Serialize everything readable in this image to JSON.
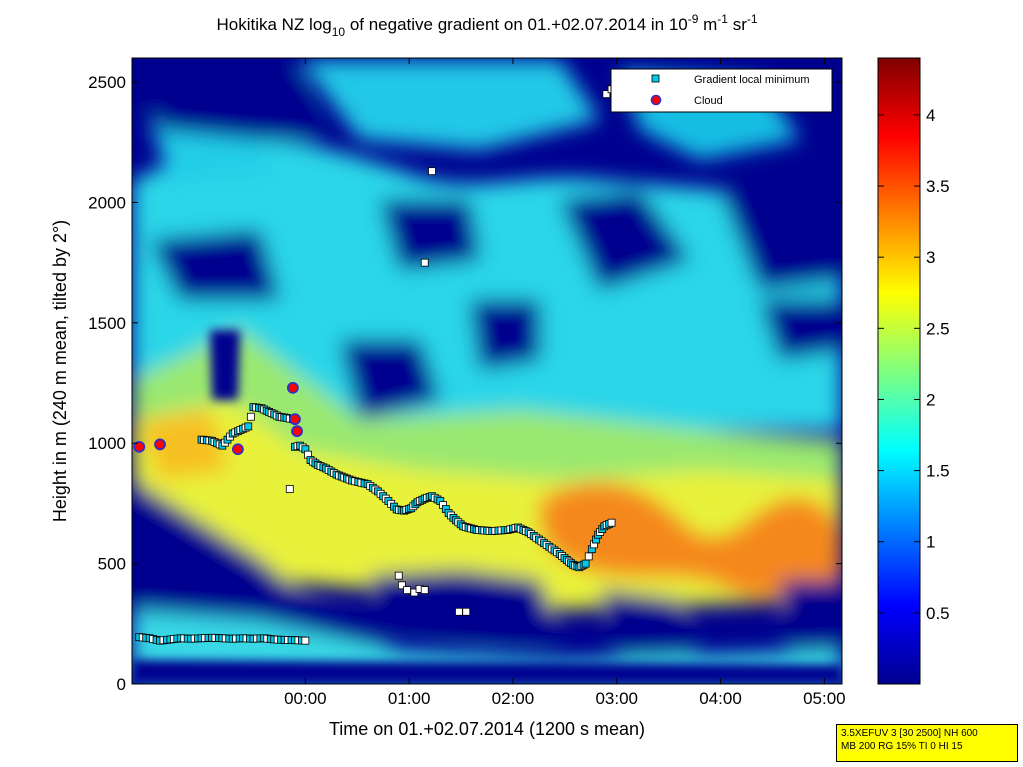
{
  "chart_data": {
    "type": "heatmap",
    "title_parts": {
      "pre": "Hokitika NZ log",
      "sub": "10",
      "mid": " of negative gradient on 01.+02.07.2014 in 10",
      "sup1": "-9",
      "unit1": " m",
      "sup2": "-1",
      "unit2": " sr",
      "sup3": "-1"
    },
    "xlabel": "Time on 01.+02.07.2014 (1200 s mean)",
    "ylabel": "Height in m (240 m mean, tilted by 2°)",
    "xticks": [
      "00:00",
      "01:00",
      "02:00",
      "03:00",
      "04:00",
      "05:00"
    ],
    "yticks": [
      "0",
      "500",
      "1000",
      "1500",
      "2000",
      "2500"
    ],
    "xlim_hours": [
      -1.67,
      5.17
    ],
    "ylim": [
      0,
      2600
    ],
    "colorbar": {
      "ticks": [
        "0.5",
        "1",
        "1.5",
        "2",
        "2.5",
        "3",
        "3.5",
        "4"
      ],
      "lim": [
        0,
        4.4
      ],
      "colormap": "jet"
    },
    "legend": {
      "position": "top-right",
      "entries": [
        "Gradient local minimum",
        "Cloud"
      ]
    },
    "gradient_minimum": {
      "main_layer": [
        [
          -1.0,
          1015
        ],
        [
          -0.9,
          1010
        ],
        [
          -0.8,
          990
        ],
        [
          -0.7,
          1040
        ],
        [
          -0.6,
          1060
        ],
        [
          -0.55,
          1070
        ],
        [
          -0.5,
          1150
        ],
        [
          -0.42,
          1145
        ],
        [
          -0.35,
          1130
        ],
        [
          -0.3,
          1120
        ],
        [
          -0.25,
          1110
        ],
        [
          -0.18,
          1105
        ],
        [
          -0.12,
          1100
        ],
        [
          -0.1,
          985
        ],
        [
          -0.05,
          990
        ],
        [
          0.0,
          975
        ],
        [
          0.05,
          930
        ],
        [
          0.12,
          910
        ],
        [
          0.2,
          895
        ],
        [
          0.3,
          870
        ],
        [
          0.45,
          845
        ],
        [
          0.6,
          830
        ],
        [
          0.7,
          800
        ],
        [
          0.8,
          760
        ],
        [
          0.88,
          725
        ],
        [
          0.95,
          720
        ],
        [
          1.02,
          730
        ],
        [
          1.08,
          755
        ],
        [
          1.15,
          770
        ],
        [
          1.22,
          780
        ],
        [
          1.3,
          760
        ],
        [
          1.38,
          710
        ],
        [
          1.45,
          680
        ],
        [
          1.52,
          655
        ],
        [
          1.65,
          640
        ],
        [
          1.8,
          635
        ],
        [
          1.95,
          640
        ],
        [
          2.05,
          650
        ],
        [
          2.15,
          630
        ],
        [
          2.25,
          600
        ],
        [
          2.35,
          570
        ],
        [
          2.45,
          540
        ],
        [
          2.52,
          515
        ],
        [
          2.58,
          495
        ],
        [
          2.64,
          485
        ],
        [
          2.7,
          500
        ],
        [
          2.76,
          560
        ],
        [
          2.82,
          620
        ],
        [
          2.88,
          655
        ],
        [
          2.95,
          670
        ]
      ],
      "lower_layer": [
        [
          -1.6,
          195
        ],
        [
          -1.5,
          190
        ],
        [
          -1.4,
          180
        ],
        [
          -1.3,
          185
        ],
        [
          -1.2,
          190
        ],
        [
          -1.1,
          188
        ],
        [
          -1.0,
          190
        ],
        [
          -0.9,
          192
        ],
        [
          -0.8,
          190
        ],
        [
          -0.7,
          188
        ],
        [
          -0.6,
          190
        ],
        [
          -0.5,
          188
        ],
        [
          -0.4,
          190
        ],
        [
          -0.3,
          185
        ],
        [
          -0.2,
          183
        ],
        [
          -0.1,
          182
        ],
        [
          0.0,
          180
        ]
      ],
      "scattered": [
        [
          0.9,
          450
        ],
        [
          0.93,
          410
        ],
        [
          0.98,
          390
        ],
        [
          1.05,
          380
        ],
        [
          1.1,
          395
        ],
        [
          1.15,
          390
        ],
        [
          1.48,
          300
        ],
        [
          1.55,
          300
        ],
        [
          1.22,
          2130
        ],
        [
          1.15,
          1750
        ],
        [
          2.9,
          2450
        ],
        [
          2.95,
          2470
        ],
        [
          -0.15,
          810
        ]
      ]
    },
    "cloud": [
      [
        -1.6,
        985
      ],
      [
        -1.4,
        995
      ],
      [
        -0.65,
        975
      ],
      [
        -0.08,
        1050
      ],
      [
        -0.1,
        1100
      ],
      [
        -0.12,
        1230
      ]
    ],
    "params_lines": [
      "3.5XEFUV 3 [30 2500] NH 600",
      "MB 200 RG 15% TI 0 HI 15"
    ]
  }
}
